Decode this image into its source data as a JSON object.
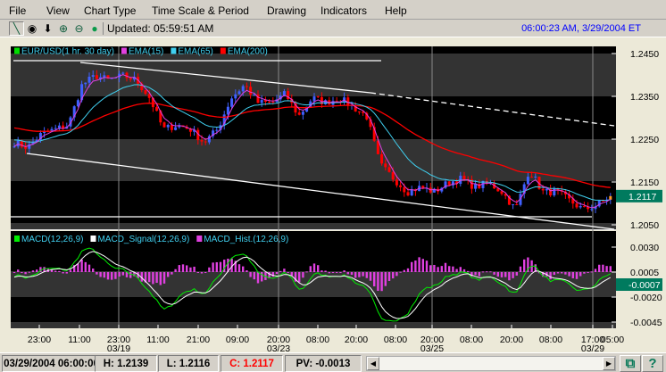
{
  "menu": [
    "File",
    "View",
    "Chart Type",
    "Time Scale & Period",
    "Drawing",
    "Indicators",
    "Help"
  ],
  "toolbar": {
    "tools": [
      {
        "icon": "draw-line-icon",
        "glyph": "╲"
      },
      {
        "icon": "crosshair-icon",
        "glyph": "◉"
      },
      {
        "icon": "arrow-down-icon",
        "glyph": "⬇"
      },
      {
        "icon": "zoom-in-icon",
        "glyph": "⊕"
      },
      {
        "icon": "zoom-out-icon",
        "glyph": "⊖"
      },
      {
        "icon": "status-light-icon",
        "glyph": "●"
      }
    ],
    "updated": "Updated: 05:59:51 AM",
    "clock": "06:00:23 AM, 3/29/2004 ET"
  },
  "price_panel": {
    "legend": [
      {
        "label": "EUR/USD(1 hr. 30 day)",
        "color": "#00dd00"
      },
      {
        "label": "EMA(15)",
        "color": "#e040e0"
      },
      {
        "label": "EMA(65)",
        "color": "#40d0f0"
      },
      {
        "label": "EMA(200)",
        "color": "#ff0000"
      }
    ],
    "axis_labels": [
      "1.2450",
      "1.2350",
      "1.2250",
      "1.2150",
      "1.2050"
    ],
    "axis_values": [
      1.245,
      1.235,
      1.225,
      1.215,
      1.205
    ],
    "last_price": "1.2117"
  },
  "macd_panel": {
    "legend": [
      {
        "label": "MACD(12,26,9)",
        "color": "#00ee00"
      },
      {
        "label": "MACD_Signal(12,26,9)",
        "color": "#ffffff"
      },
      {
        "label": "MACD_Hist.(12,26,9)",
        "color": "#e040e0"
      }
    ],
    "axis_labels": [
      "0.0030",
      "0.0005",
      "-0.0020",
      "-0.0045"
    ],
    "axis_values": [
      0.003,
      0.0005,
      -0.002,
      -0.0045
    ],
    "last_value": "-0.0007"
  },
  "x_axis": {
    "times": [
      "23:00",
      "11:00",
      "23:00",
      "11:00",
      "21:00",
      "09:00",
      "20:00",
      "08:00",
      "20:00",
      "08:00",
      "20:00",
      "08:00",
      "20:00",
      "08:00",
      "17:00",
      "05:00"
    ],
    "dates": [
      "03/19",
      "03/23",
      "03/25",
      "03/29"
    ]
  },
  "chart_data": {
    "type": "candlestick",
    "close_path": [
      1.2242,
      1.2231,
      1.2262,
      1.2273,
      1.2283,
      1.2377,
      1.2398,
      1.2388,
      1.2398,
      1.2388,
      1.2346,
      1.2273,
      1.2283,
      1.2273,
      1.2242,
      1.2273,
      1.2346,
      1.2377,
      1.2335,
      1.2335,
      1.2356,
      1.2304,
      1.2346,
      1.2335,
      1.2346,
      1.2325,
      1.2304,
      1.219,
      1.2158,
      1.2127,
      1.2138,
      1.2127,
      1.2148,
      1.2158,
      1.2138,
      1.2148,
      1.2127,
      1.2085,
      1.2179,
      1.2127,
      1.2127,
      1.2106,
      1.2085,
      1.2096,
      1.2117
    ],
    "up_color": "#4060ff",
    "down_color": "#ff0000"
  },
  "status": {
    "datetime": "03/29/2004 06:00:00",
    "high": "H: 1.2139",
    "low": "L: 1.2116",
    "close": "C: 1.2117",
    "pv": "PV: -0.0013"
  },
  "colors": {
    "accent": "#007a5e",
    "close_text": "#ff0000"
  }
}
